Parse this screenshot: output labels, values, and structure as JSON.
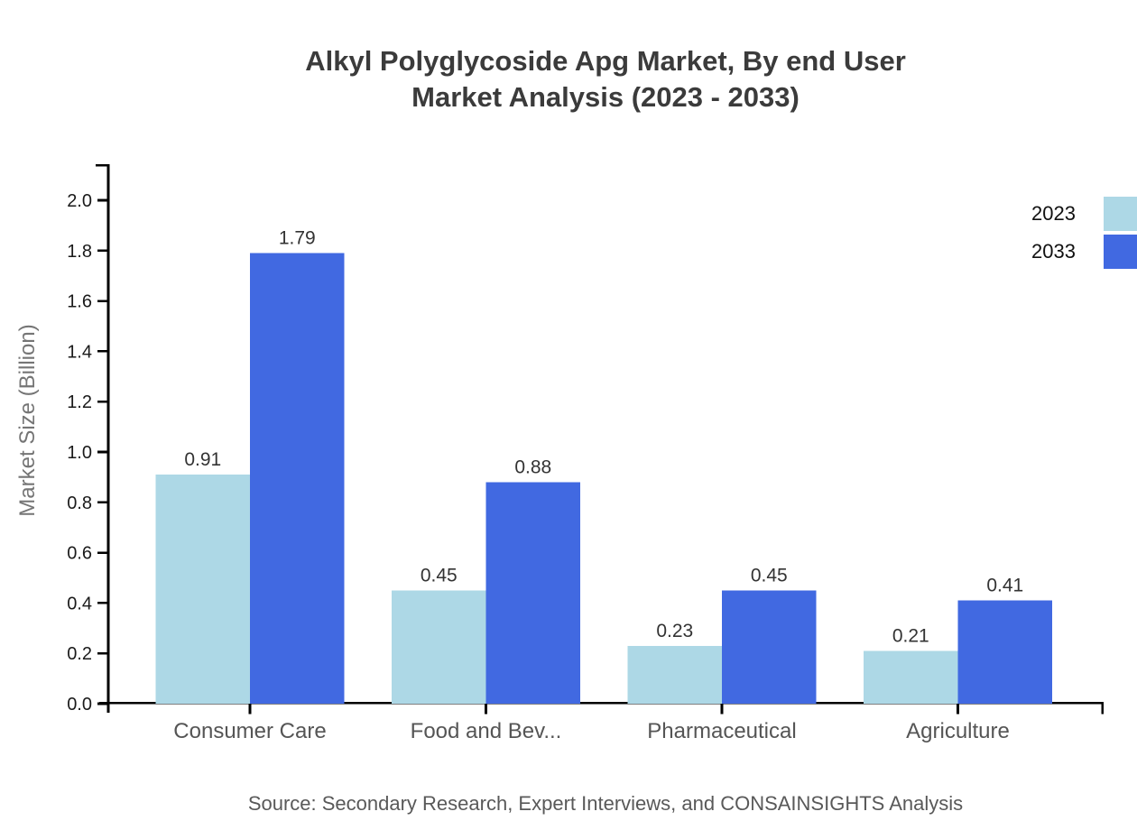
{
  "title": {
    "line1": "Alkyl Polyglycoside Apg Market, By end User",
    "line2": "Market Analysis (2023 - 2033)"
  },
  "source": "Source: Secondary Research, Expert Interviews, and CONSAINSIGHTS Analysis",
  "chart_data": {
    "type": "bar",
    "categories": [
      "Consumer Care",
      "Food and Bev...",
      "Pharmaceutical",
      "Agriculture"
    ],
    "series": [
      {
        "name": "2023",
        "color": "#ADD8E6",
        "values": [
          0.91,
          0.45,
          0.23,
          0.21
        ]
      },
      {
        "name": "2033",
        "color": "#4169E1",
        "values": [
          1.79,
          0.88,
          0.45,
          0.41
        ]
      }
    ],
    "title": "Alkyl Polyglycoside Apg Market, By end User Market Analysis (2023 - 2033)",
    "xlabel": "",
    "ylabel": "Market Size (Billion)",
    "ylim": [
      0.0,
      2.0
    ],
    "ytick_step": 0.2,
    "ytick_labels": [
      "0.0",
      "0.2",
      "0.4",
      "0.6",
      "0.8",
      "1.0",
      "1.2",
      "1.4",
      "1.6",
      "1.8",
      "2.0"
    ],
    "grid": false,
    "value_labels": true,
    "legend_position": "top-right"
  },
  "colors": {
    "series_2023": "#ADD8E6",
    "series_2033": "#4169E1",
    "axis": "#000000",
    "title_text": "#3b3b3b",
    "tick_text": "#1a1a1a",
    "category_text": "#555555",
    "value_text": "#333333",
    "source_text": "#595959",
    "y_title_text": "#757575"
  }
}
